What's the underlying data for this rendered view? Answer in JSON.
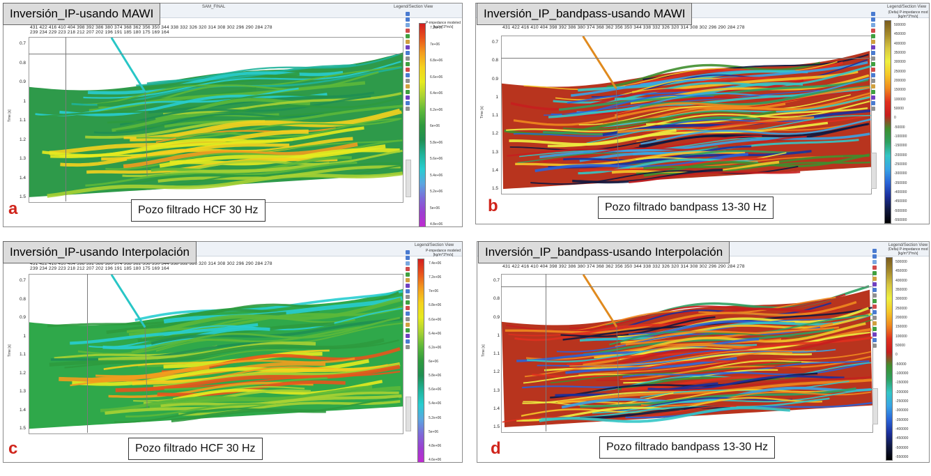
{
  "panels": [
    {
      "id": "a",
      "title": "Inversión_IP-usando MAWI",
      "caption": "Pozo filtrado HCF 30 Hz",
      "letter": "a",
      "legend_tab": "Legend/Section View",
      "legend_title": "P-impedance modeled [kg/m^3*m/s]",
      "file_label": "SAM_FINAL",
      "colorbar": "ip",
      "cb_ticks": [
        "7.2e+06",
        "7e+06",
        "6.8e+06",
        "6.6e+06",
        "6.4e+06",
        "6.2e+06",
        "6e+06",
        "5.8e+06",
        "5.6e+06",
        "5.4e+06",
        "5.2e+06",
        "5e+06",
        "4.8e+06"
      ]
    },
    {
      "id": "b",
      "title": "Inversión_IP_bandpass-usando MAWI",
      "caption": "Pozo filtrado bandpass 13-30 Hz",
      "letter": "b",
      "legend_tab": "Legend/Section View",
      "legend_title": "(Delta) P-impedance mod [kg/m^3*m/s]",
      "file_label": "",
      "colorbar": "delta",
      "cb_ticks": [
        "500000",
        "450000",
        "400000",
        "350000",
        "300000",
        "250000",
        "200000",
        "150000",
        "100000",
        "50000",
        "0",
        "-50000",
        "-100000",
        "-150000",
        "-200000",
        "-250000",
        "-300000",
        "-350000",
        "-400000",
        "-450000",
        "-500000",
        "-550000"
      ]
    },
    {
      "id": "c",
      "title": "Inversión_IP-usando Interpolación",
      "caption": "Pozo filtrado HCF 30 Hz",
      "letter": "c",
      "legend_tab": "Legend/Section View",
      "legend_title": "P-impedance modeled [kg/m^3*m/s]",
      "file_label": "",
      "colorbar": "ip",
      "cb_ticks": [
        "7.4e+06",
        "7.2e+06",
        "7e+06",
        "6.8e+06",
        "6.6e+06",
        "6.4e+06",
        "6.2e+06",
        "6e+06",
        "5.8e+06",
        "5.6e+06",
        "5.4e+06",
        "5.2e+06",
        "5e+06",
        "4.8e+06",
        "4.6e+06"
      ]
    },
    {
      "id": "d",
      "title": "Inversión_IP_bandpass-usando Interpolación",
      "caption": "Pozo filtrado bandpass 13-30 Hz",
      "letter": "d",
      "legend_tab": "Legend/Section View",
      "legend_title": "(Delta) P-impedance mod [kg/m^3*m/s]",
      "file_label": "",
      "colorbar": "delta",
      "cb_ticks": [
        "500000",
        "450000",
        "400000",
        "350000",
        "300000",
        "250000",
        "200000",
        "150000",
        "100000",
        "50000",
        "0",
        "-50000",
        "-100000",
        "-150000",
        "-200000",
        "-250000",
        "-300000",
        "-350000",
        "-400000",
        "-450000",
        "-500000",
        "-550000"
      ]
    }
  ],
  "trace_ticks_top": "431  422  416  410  404  398  392  386  380  374  368  362  356  350  344  338  332  326  320  314  308  302  296  290  284  278",
  "trace_ticks_bottom": "    239  234  229  223  218  212  207  202  196  191  185  180  175  169  164",
  "time_ticks": [
    "0.7",
    "0.8",
    "0.9",
    "1",
    "1.1",
    "1.2",
    "1.3",
    "1.4",
    "1.5"
  ],
  "time_label": "Time [s]",
  "colors": {
    "ip_scale": [
      "#d21f1f",
      "#e8541c",
      "#f39c1e",
      "#f5d21e",
      "#e6ea1f",
      "#a9d233",
      "#5cb83a",
      "#2e9a3e",
      "#1f8f52",
      "#1fb39a",
      "#28cdd0",
      "#5aa6e0",
      "#7c6bd8",
      "#9b3fd0",
      "#c12ad0"
    ],
    "delta_scale": [
      "#7a5c1e",
      "#a58a2c",
      "#d6c540",
      "#eef040",
      "#f5c728",
      "#f08a1e",
      "#e0301e",
      "#c61e1e",
      "#3f8e2e",
      "#2ea060",
      "#34c6c6",
      "#38a4e6",
      "#2a64d8",
      "#1b2f9c",
      "#101840",
      "#000000"
    ],
    "letter": "#d0241b"
  }
}
